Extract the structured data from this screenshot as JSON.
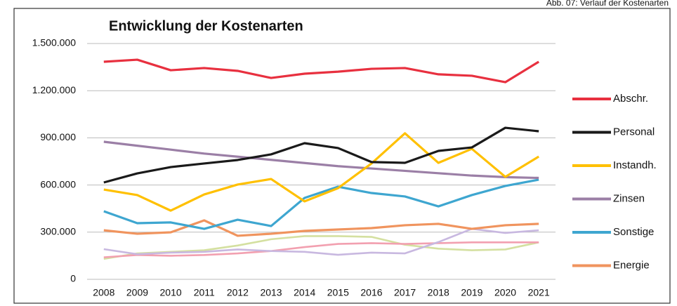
{
  "chart_data": {
    "type": "line",
    "title": "Entwicklung der Kostenarten",
    "caption": "Abb. 07: Verlauf der Kostenarten",
    "categories": [
      "2008",
      "2009",
      "2010",
      "2011",
      "2012",
      "2013",
      "2014",
      "2015",
      "2016",
      "2017",
      "2018",
      "2019",
      "2020",
      "2021"
    ],
    "ylim": [
      0,
      1500000
    ],
    "yticks": [
      0,
      {
        "value": 300000,
        "label": "300.000"
      },
      {
        "value": 600000,
        "label": "600.000"
      },
      {
        "value": 900000,
        "label": "900.000"
      },
      {
        "value": 1200000,
        "label": "1.200.000"
      },
      {
        "value": 1500000,
        "label": "1.500.000"
      }
    ],
    "grid": true,
    "legend": "right",
    "series": [
      {
        "name": "Abschr.",
        "color": "#e8303f",
        "values": [
          1384000,
          1397000,
          1330000,
          1344000,
          1326000,
          1281000,
          1308000,
          1321000,
          1339000,
          1344000,
          1304000,
          1295000,
          1254000,
          1384000
        ]
      },
      {
        "name": "Personal",
        "color": "#1a1a1a",
        "values": [
          616000,
          674000,
          714000,
          737000,
          759000,
          795000,
          866000,
          835000,
          746000,
          741000,
          817000,
          839000,
          964000,
          942000
        ]
      },
      {
        "name": "Instandh.",
        "color": "#ffc000",
        "values": [
          571000,
          536000,
          437000,
          540000,
          603000,
          638000,
          496000,
          580000,
          737000,
          929000,
          741000,
          830000,
          652000,
          781000
        ]
      },
      {
        "name": "Zinsen",
        "color": "#9b7fa6",
        "values": [
          875000,
          850000,
          825000,
          800000,
          780000,
          760000,
          740000,
          720000,
          705000,
          690000,
          675000,
          660000,
          650000,
          645000
        ]
      },
      {
        "name": "Sonstige",
        "color": "#3ea6d0",
        "values": [
          433000,
          357000,
          362000,
          321000,
          379000,
          339000,
          518000,
          589000,
          549000,
          527000,
          464000,
          536000,
          594000,
          634000
        ]
      },
      {
        "name": "Energie",
        "color": "#f0945e",
        "values": [
          312000,
          290000,
          299000,
          375000,
          277000,
          290000,
          308000,
          317000,
          326000,
          344000,
          353000,
          321000,
          344000,
          353000
        ]
      },
      {
        "color": "#c8b8e0",
        "values": [
          192000,
          160000,
          170000,
          175000,
          190000,
          180000,
          175000,
          156000,
          170000,
          165000,
          237000,
          321000,
          295000,
          312000
        ]
      },
      {
        "color": "#f2a0b0",
        "values": [
          140000,
          155000,
          150000,
          155000,
          165000,
          180000,
          205000,
          225000,
          230000,
          225000,
          230000,
          235000,
          235000,
          235000
        ]
      },
      {
        "color": "#d4e0a0",
        "values": [
          130000,
          165000,
          175000,
          185000,
          215000,
          255000,
          275000,
          275000,
          270000,
          220000,
          195000,
          185000,
          190000,
          235000
        ]
      }
    ]
  }
}
